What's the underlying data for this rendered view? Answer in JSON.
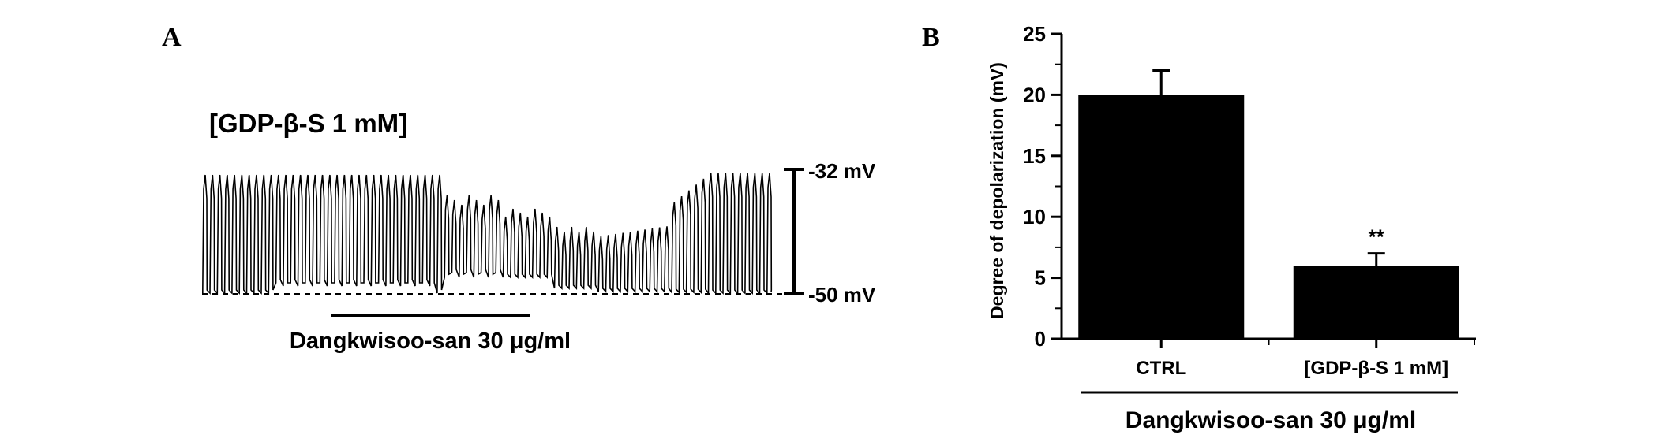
{
  "panels": {
    "a_letter": "A",
    "b_letter": "B"
  },
  "trace": {
    "condition_label": "[GDP-β-S 1 mM]",
    "scale_top_label": "-32 mV",
    "scale_bottom_label": "-50 mV",
    "treatment_label": "Dangkwisoo-san 30 μg/ml"
  },
  "chart_data": {
    "type": "bar",
    "categories": [
      "CTRL",
      "[GDP-β-S 1 mM]"
    ],
    "values": [
      20,
      6
    ],
    "errors": [
      2,
      1
    ],
    "annotations": [
      "",
      "**"
    ],
    "xlabel": "Dangkwisoo-san 30 μg/ml",
    "ylabel": "Degree of depolarization (mV)",
    "ylim": [
      0,
      25
    ],
    "yticks": [
      0,
      5,
      10,
      15,
      20,
      25
    ],
    "bar_color": "#000000",
    "grid": false
  }
}
